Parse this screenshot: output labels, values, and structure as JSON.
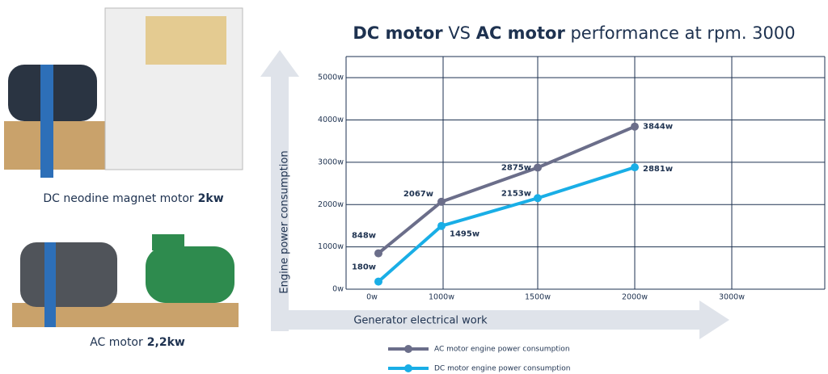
{
  "photos": [
    {
      "caption": "DC neodine magnet motor",
      "power": "2kw"
    },
    {
      "caption": "AC motor",
      "power": "2,2kw"
    }
  ],
  "chart_data": {
    "type": "line",
    "title": [
      "DC motor",
      " VS ",
      "AC motor",
      " performance at rpm. 3000"
    ],
    "x_label": "Generator electrical work",
    "y_label": "Engine power consumption",
    "categories": [
      "0w",
      "1000w",
      "1500w",
      "2000w",
      "3000w"
    ],
    "series": [
      {
        "name": "AC motor engine power consumption",
        "color": "#6b6e8a",
        "values": [
          848,
          2067,
          2875,
          3844,
          null
        ],
        "value_labels": [
          "848w",
          "2067w",
          "2875w",
          "3844w",
          null
        ]
      },
      {
        "name": "DC motor engine power consumption",
        "color": "#19aee6",
        "values": [
          180,
          1495,
          2153,
          2881,
          null
        ],
        "value_labels": [
          "180w",
          "1495w",
          "2153w",
          "2881w",
          null
        ]
      }
    ],
    "ylim": [
      0,
      5500
    ],
    "yticks": [
      {
        "value": 0,
        "label": "0w"
      },
      {
        "value": 1000,
        "label": "1000w"
      },
      {
        "value": 2000,
        "label": "2000w"
      },
      {
        "value": 3000,
        "label": "3000w"
      },
      {
        "value": 4000,
        "label": "4000w"
      },
      {
        "value": 5000,
        "label": "5000w"
      }
    ],
    "grid": true,
    "legend": "bottom"
  }
}
